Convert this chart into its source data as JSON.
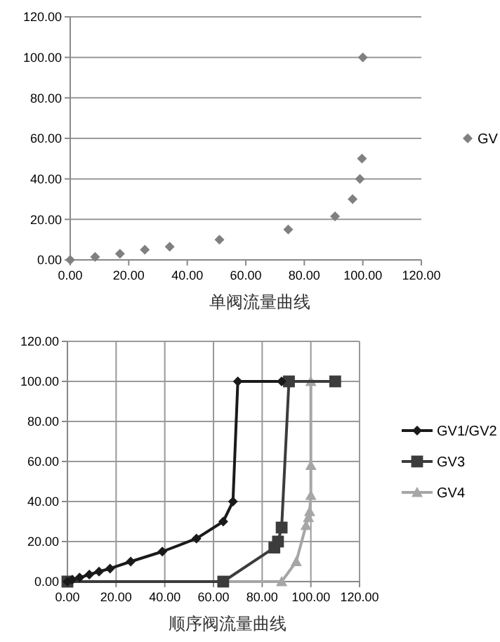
{
  "chart_data": [
    {
      "type": "scatter",
      "title": "单阀流量曲线",
      "marker": "diamond",
      "legend": "right",
      "grid": "y",
      "xlim": [
        0,
        120
      ],
      "ylim": [
        0,
        120
      ],
      "xticks": [
        {
          "value": 0,
          "label": "0.00"
        },
        {
          "value": 20,
          "label": "20.00"
        },
        {
          "value": 40,
          "label": "40.00"
        },
        {
          "value": 60,
          "label": "60.00"
        },
        {
          "value": 80,
          "label": "80.00"
        },
        {
          "value": 100,
          "label": "100.00"
        },
        {
          "value": 120,
          "label": "120.00"
        }
      ],
      "yticks": [
        {
          "value": 0,
          "label": "0.00"
        },
        {
          "value": 20,
          "label": "20.00"
        },
        {
          "value": 40,
          "label": "40.00"
        },
        {
          "value": 60,
          "label": "60.00"
        },
        {
          "value": 80,
          "label": "80.00"
        },
        {
          "value": 100,
          "label": "100.00"
        },
        {
          "value": 120,
          "label": "120.00"
        }
      ],
      "series": [
        {
          "name": "GV",
          "color": "#808080",
          "x": [
            0,
            8.5,
            17,
            25.5,
            34,
            51,
            74.5,
            90.5,
            96.5,
            99,
            99.7,
            100
          ],
          "values": [
            0,
            1.5,
            3,
            5,
            6.5,
            10,
            15,
            21.5,
            30,
            40,
            50,
            100
          ]
        }
      ]
    },
    {
      "type": "line",
      "title": "顺序阀流量曲线",
      "legend": "right",
      "grid": true,
      "xlim": [
        0,
        120
      ],
      "ylim": [
        0,
        120
      ],
      "xticks": [
        {
          "value": 0,
          "label": "0.00"
        },
        {
          "value": 20,
          "label": "20.00"
        },
        {
          "value": 40,
          "label": "40.00"
        },
        {
          "value": 60,
          "label": "60.00"
        },
        {
          "value": 80,
          "label": "80.00"
        },
        {
          "value": 100,
          "label": "100.00"
        },
        {
          "value": 120,
          "label": "120.00"
        }
      ],
      "yticks": [
        {
          "value": 0,
          "label": "0.00"
        },
        {
          "value": 20,
          "label": "20.00"
        },
        {
          "value": 40,
          "label": "40.00"
        },
        {
          "value": 60,
          "label": "60.00"
        },
        {
          "value": 80,
          "label": "80.00"
        },
        {
          "value": 100,
          "label": "100.00"
        },
        {
          "value": 120,
          "label": "120.00"
        }
      ],
      "series": [
        {
          "name": "GV1/GV2",
          "color": "#1a1a1a",
          "marker": "diamond",
          "x": [
            0,
            2,
            5,
            9,
            13,
            17.5,
            26,
            39,
            53,
            64,
            68,
            70,
            88
          ],
          "values": [
            0,
            1,
            2,
            3.5,
            5,
            6.5,
            10,
            15,
            21.5,
            30,
            40,
            100,
            100
          ]
        },
        {
          "name": "GV3",
          "color": "#3c3c3c",
          "marker": "square",
          "x": [
            0,
            64,
            85,
            86.5,
            88,
            91,
            110
          ],
          "values": [
            0,
            0,
            17,
            20,
            27,
            100,
            100
          ]
        },
        {
          "name": "GV4",
          "color": "#a6a6a6",
          "marker": "triangle",
          "x": [
            0,
            88,
            94,
            98,
            99,
            99.5,
            100,
            100,
            100
          ],
          "values": [
            0,
            0,
            10,
            28,
            32,
            35,
            43,
            58,
            100
          ]
        }
      ]
    }
  ]
}
